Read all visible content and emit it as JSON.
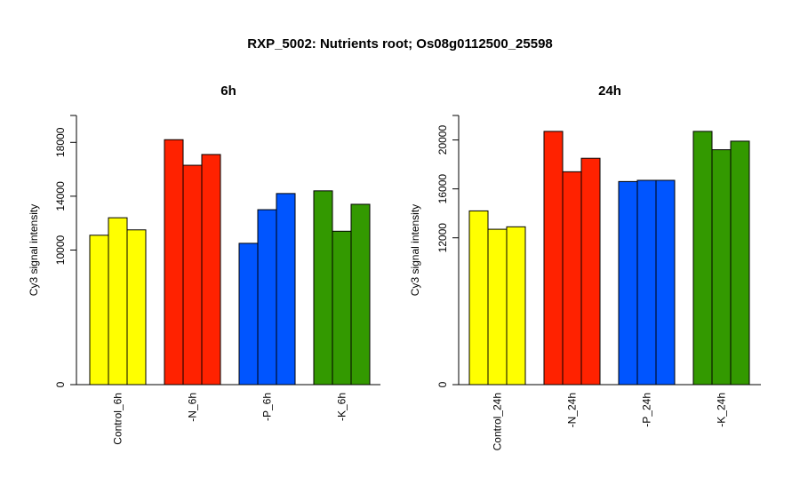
{
  "figure": {
    "title": "RXP_5002: Nutrients root; Os08g0112500_25598"
  },
  "chart_data": [
    {
      "type": "bar",
      "title": "6h",
      "xlabel": "",
      "ylabel": "Cy3 signal intensity",
      "ylim": [
        0,
        20000
      ],
      "yticks": [
        0,
        10000,
        14000,
        18000
      ],
      "categories": [
        "Control_6h",
        "-N_6h",
        "-P_6h",
        "-K_6h"
      ],
      "bar_colors": [
        "#ffff00",
        "#ff2200",
        "#0055ff",
        "#339900"
      ],
      "replicates_per_group": 3,
      "values": [
        [
          11100,
          12400,
          11500
        ],
        [
          18200,
          16300,
          17100
        ],
        [
          10500,
          13000,
          14200
        ],
        [
          14400,
          11400,
          13400
        ]
      ],
      "grid": false,
      "legend": "none"
    },
    {
      "type": "bar",
      "title": "24h",
      "xlabel": "",
      "ylabel": "Cy3 signal intensity",
      "ylim": [
        0,
        22000
      ],
      "yticks": [
        0,
        12000,
        16000,
        20000
      ],
      "categories": [
        "Control_24h",
        "-N_24h",
        "-P_24h",
        "-K_24h"
      ],
      "bar_colors": [
        "#ffff00",
        "#ff2200",
        "#0055ff",
        "#339900"
      ],
      "replicates_per_group": 3,
      "values": [
        [
          14200,
          12700,
          12900
        ],
        [
          20700,
          17400,
          18500
        ],
        [
          16600,
          16700,
          16700
        ],
        [
          20700,
          19200,
          19900
        ]
      ],
      "grid": false,
      "legend": "none"
    }
  ]
}
